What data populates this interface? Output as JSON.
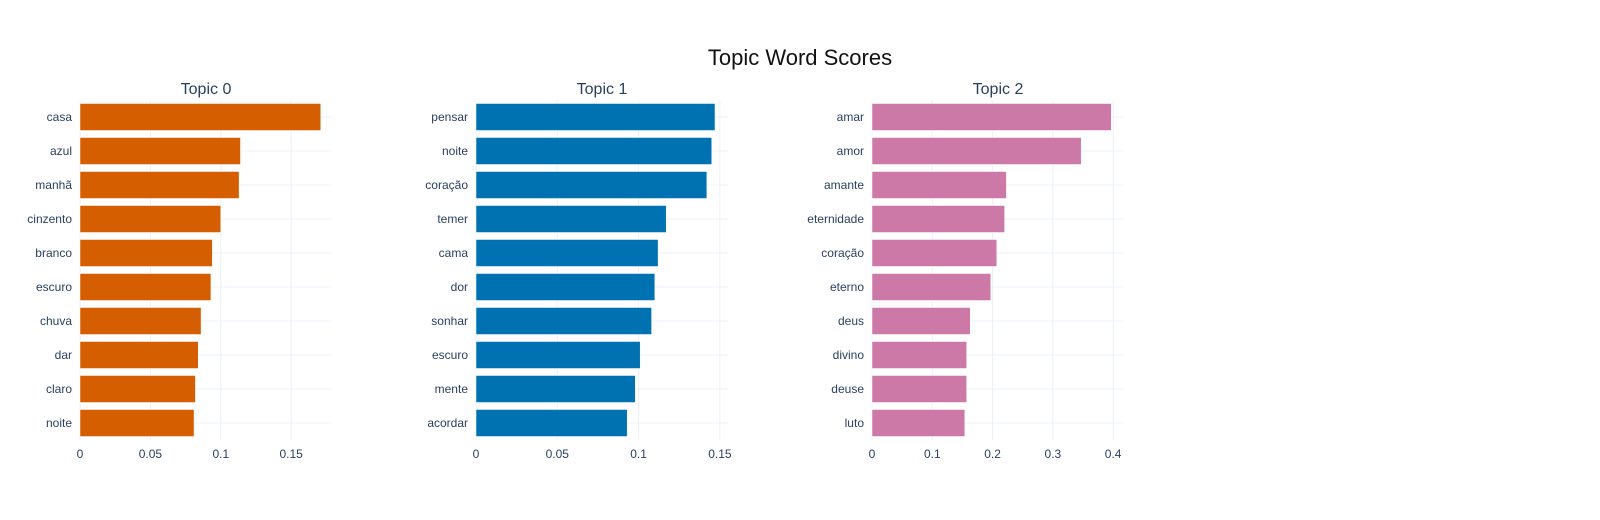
{
  "title": "Topic Word Scores",
  "chart_data": [
    {
      "type": "bar",
      "orientation": "horizontal",
      "title": "Topic 0",
      "color": "#D55E00",
      "categories": [
        "casa",
        "azul",
        "manhã",
        "cinzento",
        "branco",
        "escuro",
        "chuva",
        "dar",
        "claro",
        "noite"
      ],
      "values": [
        0.171,
        0.114,
        0.113,
        0.1,
        0.094,
        0.093,
        0.086,
        0.084,
        0.082,
        0.081
      ],
      "xlim": [
        0,
        0.179
      ],
      "xticks": [
        0,
        0.05,
        0.1,
        0.15
      ],
      "xtick_labels": [
        "0",
        "0.05",
        "0.1",
        "0.15"
      ],
      "xlabel": "",
      "ylabel": "",
      "grid": true
    },
    {
      "type": "bar",
      "orientation": "horizontal",
      "title": "Topic 1",
      "color": "#0072B2",
      "categories": [
        "pensar",
        "noite",
        "coração",
        "temer",
        "cama",
        "dor",
        "sonhar",
        "escuro",
        "mente",
        "acordar"
      ],
      "values": [
        0.147,
        0.145,
        0.142,
        0.117,
        0.112,
        0.11,
        0.108,
        0.101,
        0.098,
        0.093
      ],
      "xlim": [
        0,
        0.155
      ],
      "xticks": [
        0,
        0.05,
        0.1,
        0.15
      ],
      "xtick_labels": [
        "0",
        "0.05",
        "0.1",
        "0.15"
      ],
      "xlabel": "",
      "ylabel": "",
      "grid": true
    },
    {
      "type": "bar",
      "orientation": "horizontal",
      "title": "Topic 2",
      "color": "#CC79A7",
      "categories": [
        "amar",
        "amor",
        "amante",
        "eternidade",
        "coração",
        "eterno",
        "deus",
        "divino",
        "deuse",
        "luto"
      ],
      "values": [
        0.397,
        0.347,
        0.223,
        0.22,
        0.207,
        0.197,
        0.163,
        0.157,
        0.157,
        0.154
      ],
      "xlim": [
        0,
        0.418
      ],
      "xticks": [
        0,
        0.1,
        0.2,
        0.3,
        0.4
      ],
      "xtick_labels": [
        "0",
        "0.1",
        "0.2",
        "0.3",
        "0.4"
      ],
      "xlabel": "",
      "ylabel": "",
      "grid": true
    }
  ]
}
